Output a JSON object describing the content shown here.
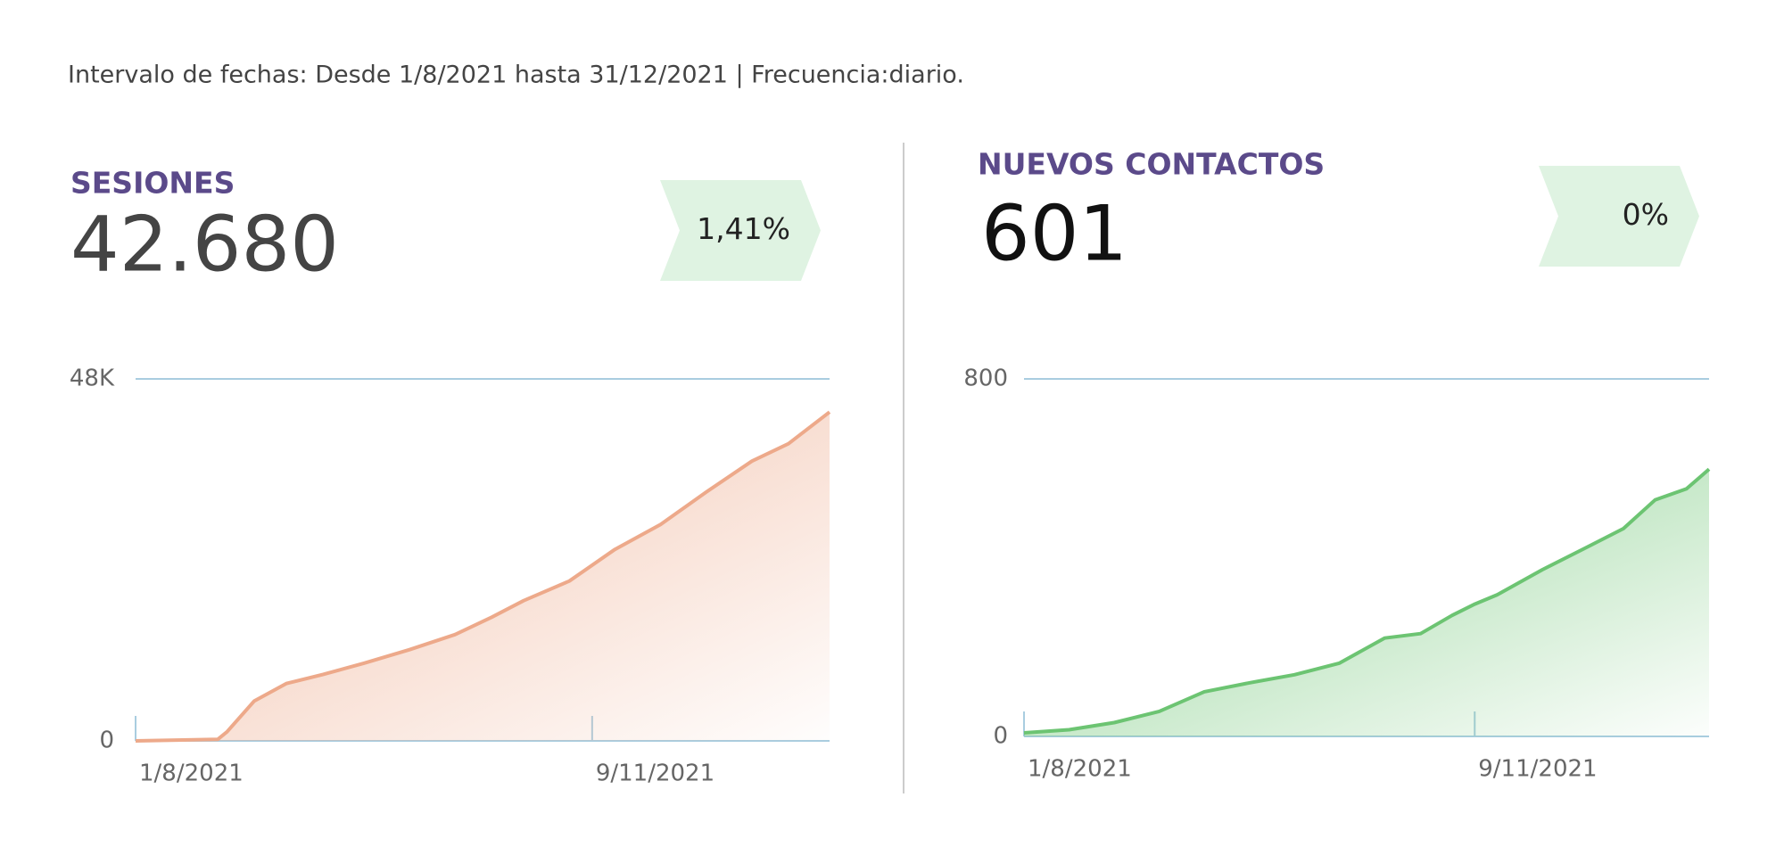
{
  "header": "Intervalo de fechas: Desde 1/8/2021 hasta 31/12/2021 | Frecuencia:diario.",
  "chart_data": [
    {
      "type": "area",
      "title": "SESIONES",
      "total": "42.680",
      "change": "1,41%",
      "color": "#eda98a",
      "x": [
        "1/8/2021",
        "19/8/2021",
        "21/8/2021",
        "27/8/2021",
        "3/9/2021",
        "11/9/2021",
        "20/9/2021",
        "30/9/2021",
        "10/10/2021",
        "18/10/2021",
        "25/10/2021",
        "4/11/2021",
        "14/11/2021",
        "24/11/2021",
        "4/12/2021",
        "14/12/2021",
        "22/12/2021",
        "31/12/2021"
      ],
      "values": [
        0,
        200,
        1200,
        5300,
        7600,
        8800,
        10300,
        12100,
        14100,
        16400,
        18600,
        21200,
        25400,
        28700,
        33000,
        37100,
        39400,
        43600
      ],
      "xlim": [
        "1/8/2021",
        "31/12/2021"
      ],
      "xticks": [
        "1/8/2021",
        "9/11/2021"
      ],
      "ylim": [
        0,
        48000
      ],
      "yticks": [
        0,
        {
          "value": 48000,
          "label": "48K"
        }
      ],
      "grid": true
    },
    {
      "type": "area",
      "title": "NUEVOS CONTACTOS",
      "total": "601",
      "change": "0%",
      "color": "#6cc472",
      "x": [
        "1/8/2021",
        "11/8/2021",
        "21/8/2021",
        "31/8/2021",
        "10/9/2021",
        "20/9/2021",
        "30/9/2021",
        "10/10/2021",
        "20/10/2021",
        "28/10/2021",
        "4/11/2021",
        "9/11/2021",
        "14/11/2021",
        "24/11/2021",
        "4/12/2021",
        "12/12/2021",
        "19/12/2021",
        "26/12/2021",
        "31/12/2021"
      ],
      "values": [
        8,
        15,
        31,
        56,
        100,
        120,
        138,
        164,
        220,
        230,
        271,
        296,
        317,
        373,
        424,
        465,
        529,
        554,
        598
      ],
      "xlim": [
        "1/8/2021",
        "31/12/2021"
      ],
      "xticks": [
        "1/8/2021",
        "9/11/2021"
      ],
      "ylim": [
        0,
        800
      ],
      "yticks": [
        0,
        800
      ],
      "grid": true
    }
  ]
}
